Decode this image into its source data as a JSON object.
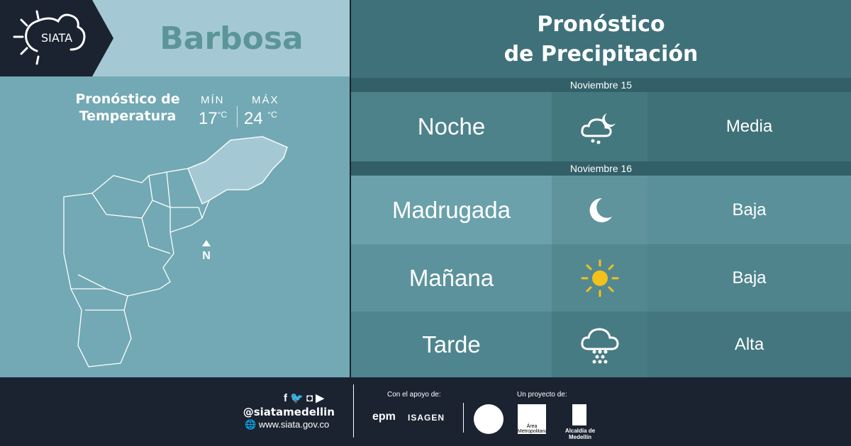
{
  "brand": {
    "logo_text": "SIATA"
  },
  "city": "Barbosa",
  "temperature": {
    "title_line1": "Pronóstico de",
    "title_line2": "Temperatura",
    "min_label": "MÍN",
    "max_label": "MÁX",
    "min_value": "17",
    "max_value": "24",
    "unit": "°C"
  },
  "map": {
    "north_label": "N"
  },
  "forecast": {
    "title_line1": "Pronóstico",
    "title_line2": "de Precipitación",
    "days": [
      {
        "date": "Noviembre 15",
        "rows": [
          {
            "period": "Noche",
            "icon": "cloud-moon-rain-icon",
            "level": "Media"
          }
        ]
      },
      {
        "date": "Noviembre 16",
        "rows": [
          {
            "period": "Madrugada",
            "icon": "moon-icon",
            "level": "Baja"
          },
          {
            "period": "Mañana",
            "icon": "sun-icon",
            "level": "Baja"
          },
          {
            "period": "Tarde",
            "icon": "cloud-rain-heavy-icon",
            "level": "Alta"
          }
        ]
      }
    ]
  },
  "footer": {
    "handle": "@siatamedellin",
    "website": "www.siata.gov.co",
    "support_label": "Con el apoyo de:",
    "project_label": "Un proyecto de:",
    "sponsors": [
      "epm",
      "ISAGEN"
    ],
    "partners": [
      "Área Metropolitana",
      "Alcaldía de Medellín"
    ]
  },
  "colors": {
    "dark": "#1b2331",
    "sun": "#f2c11c",
    "teal": "#3f717a"
  }
}
